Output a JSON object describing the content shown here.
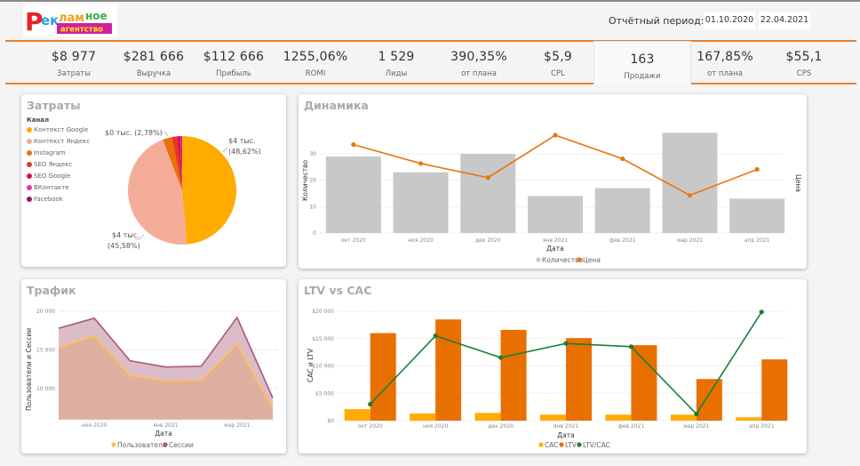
{
  "header": {
    "logo_text_top": "Рекламное",
    "logo_text_bottom": "агентство",
    "period_label": "Отчётный период:",
    "date_from": "01.10.2020",
    "date_to": "22.04.2021"
  },
  "kpis": [
    {
      "value": "$8 977",
      "label": "Затраты"
    },
    {
      "value": "$281 666",
      "label": "Выручка"
    },
    {
      "value": "$112 666",
      "label": "Прибыль"
    },
    {
      "value": "1255,06%",
      "label": "ROMI"
    },
    {
      "value": "1 529",
      "label": "Лиды"
    },
    {
      "value": "390,35%",
      "label": "от плана"
    },
    {
      "value": "$5,9",
      "label": "CPL"
    },
    {
      "value": "163",
      "label": "Продажи",
      "selected": true
    },
    {
      "value": "167,85%",
      "label": "от плана"
    },
    {
      "value": "$55,1",
      "label": "CPS"
    }
  ],
  "colors": {
    "accent": "#e8812b",
    "bar_gray": "#c8c8c8",
    "line_orange": "#e8760f",
    "cac": "#ffab00",
    "ltv": "#e87000",
    "ratio": "#1a7f37",
    "sessions": "#a8587a",
    "users": "#ffc34d",
    "area_fill": "#deb0a0"
  },
  "chart_data": [
    {
      "id": "zatraty",
      "type": "pie",
      "title": "Затраты",
      "legend_title": "Канал",
      "legend_position": "top-left",
      "slices": [
        {
          "name": "Контекст Google",
          "percent": 48.62,
          "label": "$4 тыс.",
          "label2": "(48,62%)",
          "color": "#ffab00"
        },
        {
          "name": "Контекст Яндекс",
          "percent": 45.58,
          "label": "$4 тыс.",
          "label2": "(45,58%)",
          "color": "#f4ad98"
        },
        {
          "name": "Instagram",
          "percent": 2.78,
          "label": "$0 тыс. (2,78%)",
          "label2": "",
          "color": "#e8700a"
        },
        {
          "name": "SEO Яндекс",
          "percent": 1.5,
          "label": "",
          "label2": "",
          "color": "#e6381a"
        },
        {
          "name": "SEO Google",
          "percent": 1.0,
          "label": "",
          "label2": "",
          "color": "#d6105a"
        },
        {
          "name": "ВКонтакте",
          "percent": 0.3,
          "label": "",
          "label2": "",
          "color": "#f0309a"
        },
        {
          "name": "Facebook",
          "percent": 0.22,
          "label": "",
          "label2": "",
          "color": "#9c1060"
        }
      ]
    },
    {
      "id": "dinamika",
      "type": "bar",
      "title": "Динамика",
      "xlabel": "Дата",
      "ylabel": "Количество",
      "y2label": "Цена",
      "categories": [
        "окт 2020",
        "ноя 2020",
        "дек 2020",
        "янв 2021",
        "фев 2021",
        "мар 2021",
        "апр 2021"
      ],
      "series": [
        {
          "name": "Количество",
          "type": "bar",
          "axis": "left",
          "values": [
            29,
            23,
            30,
            14,
            17,
            38,
            13
          ]
        },
        {
          "name": "Цена",
          "type": "line",
          "axis": "right",
          "values": [
            75,
            59,
            47,
            83,
            63,
            32,
            54
          ]
        }
      ],
      "ylim": [
        0,
        40
      ],
      "yticks": [
        0,
        10,
        20,
        30
      ],
      "y2lim": [
        0,
        80
      ],
      "y2ticks": [
        0,
        20,
        40,
        60,
        80
      ],
      "legend_position": "bottom"
    },
    {
      "id": "trafik",
      "type": "area",
      "title": "Трафик",
      "xlabel": "Дата",
      "ylabel": "Пользователи и Сессии",
      "categories": [
        "окт 2020",
        "ноя 2020",
        "дек 2020",
        "янв 2021",
        "фев 2021",
        "мар 2021",
        "апр 2021"
      ],
      "xtick_labels": [
        "ноя 2020",
        "янв 2021",
        "мар 2021"
      ],
      "series": [
        {
          "name": "Пользователи",
          "values": [
            15300,
            16800,
            11700,
            11000,
            11100,
            15800,
            7400
          ]
        },
        {
          "name": "Сессии",
          "values": [
            17800,
            19100,
            13600,
            12800,
            12900,
            19200,
            8800
          ]
        }
      ],
      "ylim": [
        6000,
        20500
      ],
      "yticks": [
        10000,
        15000,
        20000
      ],
      "ytick_labels": [
        "10 000",
        "15 000",
        "20 000"
      ],
      "legend_position": "bottom"
    },
    {
      "id": "ltv_cac",
      "type": "bar",
      "title": "LTV vs CAC",
      "xlabel": "Дата",
      "ylabel": "CAC и LTV",
      "y2label": "LTV/CAC",
      "categories": [
        "окт 2020",
        "ноя 2020",
        "дек 2020",
        "янв 2021",
        "фев 2021",
        "мар 2021",
        "апр 2021"
      ],
      "series": [
        {
          "name": "CAC",
          "type": "bar",
          "axis": "left",
          "values": [
            2100,
            1300,
            1400,
            1100,
            1100,
            1100,
            600
          ]
        },
        {
          "name": "LTV",
          "type": "bar",
          "axis": "left",
          "values": [
            16000,
            18500,
            16600,
            15100,
            13800,
            7600,
            11200
          ]
        },
        {
          "name": "LTV/CAC",
          "type": "line",
          "axis": "right",
          "values": [
            7.5,
            13.8,
            11.8,
            13.1,
            12.8,
            6.6,
            16.0
          ]
        }
      ],
      "ylim": [
        0,
        20000
      ],
      "yticks": [
        0,
        5000,
        10000,
        15000,
        20000
      ],
      "ytick_labels": [
        "$0",
        "$5 000",
        "$10 000",
        "$15 000",
        "$20 000"
      ],
      "y2lim": [
        5.9,
        17.5
      ],
      "y2ticks": [
        10,
        15
      ],
      "legend_position": "bottom"
    }
  ]
}
